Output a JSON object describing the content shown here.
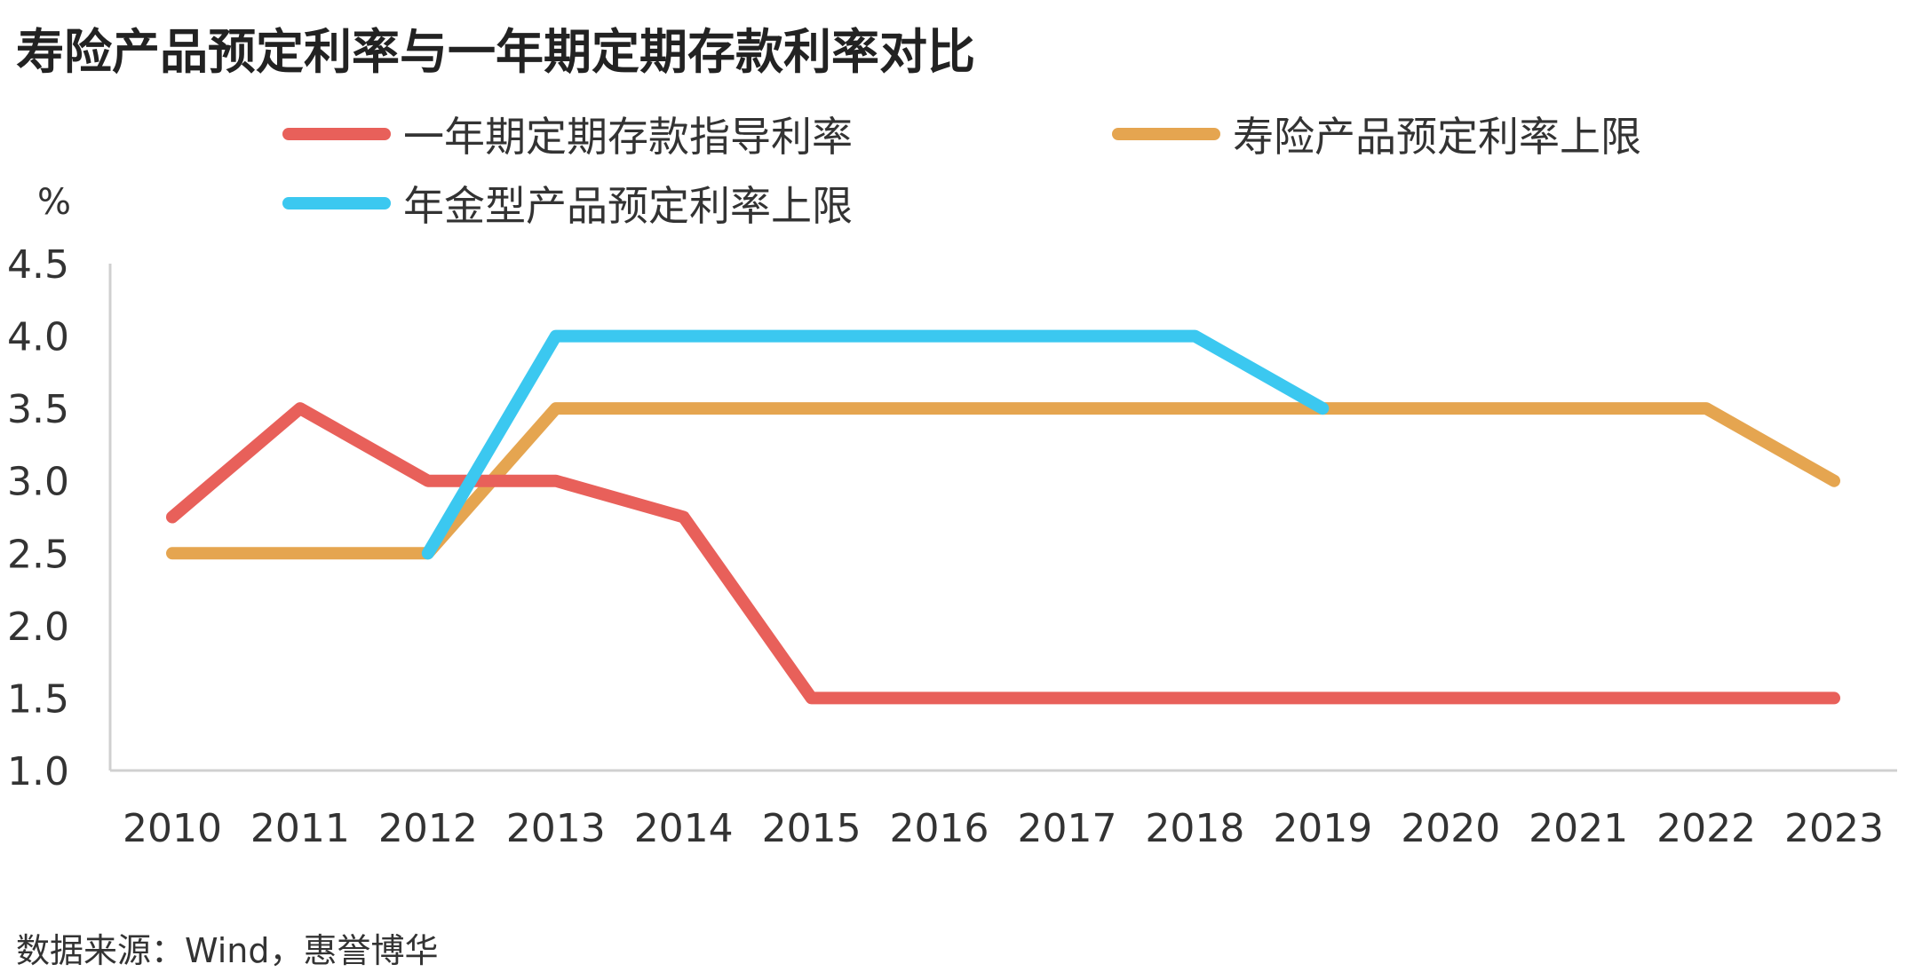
{
  "chart_data": {
    "type": "line",
    "title": "寿险产品预定利率与一年期定期存款利率对比",
    "ylabel": "%",
    "xlabel": "",
    "source": "数据来源：Wind，惠誉博华",
    "categories": [
      "2010",
      "2011",
      "2012",
      "2013",
      "2014",
      "2015",
      "2016",
      "2017",
      "2018",
      "2019",
      "2020",
      "2021",
      "2022",
      "2023"
    ],
    "ylim": [
      1.0,
      4.5
    ],
    "yticks": [
      "1.0",
      "1.5",
      "2.0",
      "2.5",
      "3.0",
      "3.5",
      "4.0",
      "4.5"
    ],
    "grid": false,
    "legend_position": "top",
    "series": [
      {
        "name": "一年期定期存款指导利率",
        "color": "#E8605A",
        "values": [
          2.75,
          3.5,
          3.0,
          3.0,
          2.75,
          1.5,
          1.5,
          1.5,
          1.5,
          1.5,
          1.5,
          1.5,
          1.5,
          1.5
        ]
      },
      {
        "name": "寿险产品预定利率上限",
        "color": "#E5A550",
        "values": [
          2.5,
          2.5,
          2.5,
          3.5,
          3.5,
          3.5,
          3.5,
          3.5,
          3.5,
          3.5,
          3.5,
          3.5,
          3.5,
          3.0
        ]
      },
      {
        "name": "年金型产品预定利率上限",
        "color": "#3BC8F0",
        "values": [
          null,
          null,
          2.5,
          4.0,
          4.0,
          4.0,
          4.0,
          4.0,
          4.0,
          3.5,
          null,
          null,
          null,
          null
        ]
      }
    ]
  }
}
